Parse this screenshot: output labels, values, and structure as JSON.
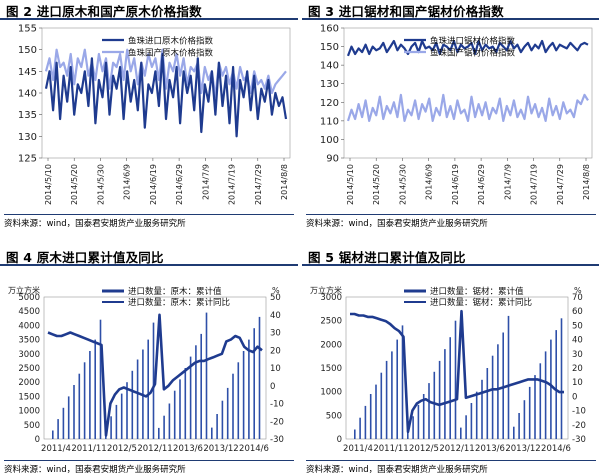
{
  "charts": [
    {
      "id": "fig2",
      "title": "图 2 进口原木和国产原木价格指数",
      "source": "资料来源：wind，国泰君安期货产业服务研究所"
    },
    {
      "id": "fig3",
      "title": "图 3 进口锯材和国产锯材价格指数",
      "source": "资料来源：wind，国泰君安期货产业服务研究所"
    },
    {
      "id": "fig4",
      "title": "图 4 原木进口累计值及同比",
      "source": "资料来源：wind，国泰君安期货产业服务研究所"
    },
    {
      "id": "fig5",
      "title": "图 5 锯材进口累计值及同比",
      "source": "资料来源：wind，国泰君安期货产业服务研究所"
    }
  ],
  "chart_data": [
    {
      "type": "line",
      "xlabels": [
        "2014/5/10",
        "2014/5/20",
        "2014/5/30",
        "2014/6/9",
        "2014/6/19",
        "2014/6/29",
        "2014/7/9",
        "2014/7/19",
        "2014/7/29",
        "2014/8/8"
      ],
      "ylim": [
        125,
        155
      ],
      "yticks": [
        125,
        130,
        135,
        140,
        145,
        150,
        155
      ],
      "series": [
        {
          "name": "鱼珠进口原木价格指数",
          "color": "#1f3b8f",
          "width": 2.2,
          "values": [
            141,
            145,
            136,
            147,
            134,
            144,
            138,
            146,
            135,
            142,
            140,
            145,
            137,
            148,
            133,
            143,
            139,
            147,
            135,
            144,
            141,
            146,
            134,
            145,
            138,
            143,
            136,
            147,
            132,
            142,
            140,
            145,
            137,
            149,
            134,
            143,
            139,
            146,
            133,
            145,
            140,
            144,
            136,
            148,
            131,
            142,
            138,
            145,
            135,
            147,
            137,
            144,
            133,
            146,
            130,
            143,
            139,
            145,
            136,
            144,
            134,
            141,
            138,
            143,
            135,
            140,
            137,
            139,
            134
          ]
        },
        {
          "name": "鱼珠国产原木价格指数",
          "color": "#9aa8e8",
          "width": 2.2,
          "values": [
            145,
            148,
            143,
            150,
            146,
            147,
            144,
            149,
            142,
            148,
            146,
            150,
            144,
            147,
            143,
            149,
            145,
            148,
            141,
            147,
            146,
            149,
            143,
            150,
            145,
            148,
            142,
            147,
            144,
            149,
            146,
            148,
            143,
            150,
            141,
            147,
            145,
            149,
            144,
            148,
            142,
            146,
            145,
            147,
            140,
            146,
            143,
            145,
            139,
            147,
            144,
            146,
            142,
            145,
            141,
            146,
            143,
            144,
            140,
            145,
            142,
            143,
            141,
            144,
            140,
            142,
            143,
            144,
            145
          ]
        }
      ]
    },
    {
      "type": "line",
      "xlabels": [
        "2014/5/10",
        "2014/5/20",
        "2014/5/30",
        "2014/6/9",
        "2014/6/19",
        "2014/6/29",
        "2014/7/9",
        "2014/7/19",
        "2014/7/29",
        "2014/8/8"
      ],
      "ylim": [
        90,
        160
      ],
      "yticks": [
        90,
        100,
        110,
        120,
        130,
        140,
        150,
        160
      ],
      "series": [
        {
          "name": "鱼珠进口锯材价格指数",
          "color": "#1f3b8f",
          "width": 2.2,
          "values": [
            145,
            150,
            146,
            149,
            147,
            151,
            146,
            150,
            148,
            149,
            152,
            147,
            150,
            153,
            148,
            151,
            149,
            146,
            150,
            152,
            147,
            153,
            149,
            150,
            148,
            152,
            146,
            151,
            150,
            148,
            153,
            147,
            151,
            149,
            150,
            152,
            146,
            153,
            148,
            151,
            149,
            150,
            147,
            152,
            150,
            148,
            153,
            149,
            151,
            147,
            150,
            152,
            148,
            151,
            149,
            153,
            147,
            150,
            152,
            148,
            151,
            150,
            149,
            152,
            150,
            148,
            151,
            152,
            151
          ]
        },
        {
          "name": "鱼珠国产锯材价格指数",
          "color": "#9aa8e8",
          "width": 2.2,
          "values": [
            110,
            116,
            111,
            119,
            112,
            121,
            110,
            117,
            113,
            123,
            111,
            118,
            114,
            120,
            112,
            124,
            110,
            116,
            113,
            121,
            111,
            119,
            115,
            122,
            110,
            117,
            113,
            124,
            112,
            118,
            111,
            121,
            114,
            116,
            110,
            123,
            112,
            119,
            113,
            120,
            111,
            117,
            114,
            122,
            110,
            118,
            113,
            121,
            112,
            116,
            111,
            123,
            114,
            119,
            112,
            117,
            110,
            122,
            113,
            118,
            111,
            120,
            114,
            116,
            112,
            121,
            119,
            124,
            121
          ]
        }
      ]
    },
    {
      "type": "bar+line",
      "xlabels": [
        "2011/4",
        "2011/11",
        "2012/5",
        "2012/11",
        "2013/6",
        "2013/12",
        "2014/6"
      ],
      "ylabel_left": "万立方米",
      "ylabel_right": "%",
      "ylim_left": [
        0,
        5000
      ],
      "yticks_left": [
        0,
        500,
        1000,
        1500,
        2000,
        2500,
        3000,
        3500,
        4000,
        4500,
        5000
      ],
      "ylim_right": [
        -30,
        50
      ],
      "yticks_right": [
        -30,
        -20,
        -10,
        0,
        10,
        20,
        30,
        40,
        50
      ],
      "legend": [
        "进口数量：原木：累计值",
        "进口数量：原木：累计同比"
      ],
      "bars_name": "进口数量：原木：累计值",
      "bars": [
        300,
        700,
        1100,
        1500,
        1900,
        2300,
        2700,
        3100,
        3500,
        4200,
        380,
        800,
        1200,
        1600,
        2000,
        2400,
        2800,
        3150,
        3500,
        4100,
        390,
        820,
        1250,
        1700,
        2100,
        2500,
        2900,
        3300,
        3700,
        4450,
        400,
        880,
        1350,
        1800,
        2300,
        2700,
        3100,
        3500,
        3900,
        4300
      ],
      "line_name": "进口数量：原木：累计同比",
      "line": [
        30,
        29,
        28,
        28,
        29,
        30,
        29,
        28,
        27,
        26,
        25,
        24,
        23,
        -28,
        -10,
        -5,
        -2,
        -1,
        -2,
        -3,
        -4,
        -5,
        -6,
        -4,
        1,
        40,
        -2,
        0,
        3,
        5,
        7,
        9,
        11,
        13,
        14,
        14,
        15,
        16,
        17,
        18,
        25,
        26,
        28,
        27,
        22,
        20,
        19,
        22,
        20
      ]
    },
    {
      "type": "bar+line",
      "xlabels": [
        "2011/4",
        "2011/11",
        "2012/5",
        "2012/11",
        "2013/6",
        "2013/12",
        "2014/6"
      ],
      "ylabel_left": "万立方米",
      "ylabel_right": "%",
      "ylim_left": [
        0,
        3000
      ],
      "yticks_left": [
        0,
        500,
        1000,
        1500,
        2000,
        2500,
        3000
      ],
      "ylim_right": [
        -30,
        70
      ],
      "yticks_right": [
        -30,
        -20,
        -10,
        0,
        10,
        20,
        30,
        40,
        50,
        60,
        70
      ],
      "legend": [
        "进口数量：锯材：累计值",
        "进口数量：锯材：累计同比"
      ],
      "bars_name": "进口数量：锯材：累计值",
      "bars": [
        200,
        450,
        700,
        950,
        1150,
        1400,
        1650,
        1850,
        2100,
        2400,
        230,
        480,
        720,
        950,
        1180,
        1420,
        1650,
        1900,
        2150,
        2500,
        240,
        500,
        760,
        1000,
        1250,
        1500,
        1760,
        2000,
        2250,
        2600,
        260,
        550,
        820,
        1100,
        1350,
        1600,
        1850,
        2100,
        2300,
        2550
      ],
      "line_name": "进口数量：锯材：累计同比",
      "line": [
        58,
        58,
        57,
        57,
        56,
        56,
        55,
        54,
        53,
        51,
        48,
        46,
        42,
        -25,
        -10,
        -5,
        -3,
        -2,
        -4,
        -5,
        -6,
        -5,
        -4,
        -3,
        -2,
        60,
        -1,
        0,
        1,
        2,
        3,
        4,
        5,
        5,
        6,
        7,
        8,
        9,
        10,
        11,
        12,
        12,
        12,
        11,
        10,
        8,
        5,
        3,
        3
      ]
    }
  ]
}
